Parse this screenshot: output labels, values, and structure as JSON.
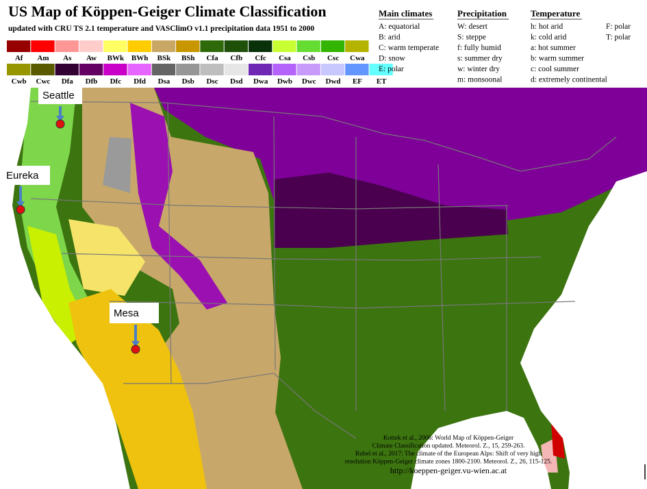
{
  "header": {
    "title": "US Map of Köppen-Geiger Climate Classification",
    "subtitle": "updated with CRU TS 2.1 temperature and VASClimO v1.1 precipitation data 1951 to 2000"
  },
  "legend": {
    "classes": [
      {
        "code": "Af",
        "color": "#960000"
      },
      {
        "code": "Am",
        "color": "#ff0000"
      },
      {
        "code": "As",
        "color": "#ff9696"
      },
      {
        "code": "Aw",
        "color": "#ffcccc"
      },
      {
        "code": "BWk",
        "color": "#ffff64"
      },
      {
        "code": "BWh",
        "color": "#ffcc00"
      },
      {
        "code": "BSk",
        "color": "#c8a864"
      },
      {
        "code": "BSh",
        "color": "#c89600"
      },
      {
        "code": "Cfa",
        "color": "#2f6a0a"
      },
      {
        "code": "Cfb",
        "color": "#1f500a"
      },
      {
        "code": "Cfc",
        "color": "#0a320a"
      },
      {
        "code": "Csa",
        "color": "#c8ff32"
      },
      {
        "code": "Csb",
        "color": "#64dc32"
      },
      {
        "code": "Csc",
        "color": "#32b400"
      },
      {
        "code": "Cwa",
        "color": "#b4b400"
      },
      {
        "code": "Cwb",
        "color": "#969600"
      },
      {
        "code": "Cwc",
        "color": "#5a5a00"
      },
      {
        "code": "Dfa",
        "color": "#320032"
      },
      {
        "code": "Dfb",
        "color": "#640064"
      },
      {
        "code": "Dfc",
        "color": "#c800c8"
      },
      {
        "code": "Dfd",
        "color": "#e664ff"
      },
      {
        "code": "Dsa",
        "color": "#646464"
      },
      {
        "code": "Dsb",
        "color": "#969696"
      },
      {
        "code": "Dsc",
        "color": "#bebebe"
      },
      {
        "code": "Dsd",
        "color": "#e6e6e6"
      },
      {
        "code": "Dwa",
        "color": "#6e28b4"
      },
      {
        "code": "Dwb",
        "color": "#b464fa"
      },
      {
        "code": "Dwc",
        "color": "#c89bfa"
      },
      {
        "code": "Dwd",
        "color": "#c8c8ff"
      },
      {
        "code": "EF",
        "color": "#6496ff"
      },
      {
        "code": "ET",
        "color": "#64ffff"
      }
    ]
  },
  "key": {
    "main_climates": {
      "title": "Main climates",
      "items": [
        "A: equatorial",
        "B: arid",
        "C: warm temperate",
        "D: snow",
        "E: polar"
      ]
    },
    "precipitation": {
      "title": "Precipitation",
      "items": [
        "W: desert",
        "S: steppe",
        "f: fully humid",
        "s: summer dry",
        "w: winter dry",
        "m: monsoonal"
      ]
    },
    "temperature": {
      "title": "Temperature",
      "items": [
        "h: hot arid",
        "k: cold arid",
        "a: hot summer",
        "b: warm summer",
        "c: cool summer",
        "d: extremely continental"
      ],
      "polar_items": [
        "F: polar",
        "T: polar"
      ]
    }
  },
  "markers": [
    {
      "label": "Seattle"
    },
    {
      "label": "Eureka"
    },
    {
      "label": "Mesa"
    }
  ],
  "citation": [
    "Kottek et al., 2006: World Map of Köppen-Geiger",
    "Climate Classification updated. Meteorol. Z., 15, 259-263.",
    "Rubel et al., 2017: The climate of the European Alps: Shift of very high",
    "resolution Köppen-Geiger climate zones 1800-2100. Meteorol. Z., 26, 115-125.",
    "http://koeppen-geiger.vu-wien.ac.at"
  ]
}
